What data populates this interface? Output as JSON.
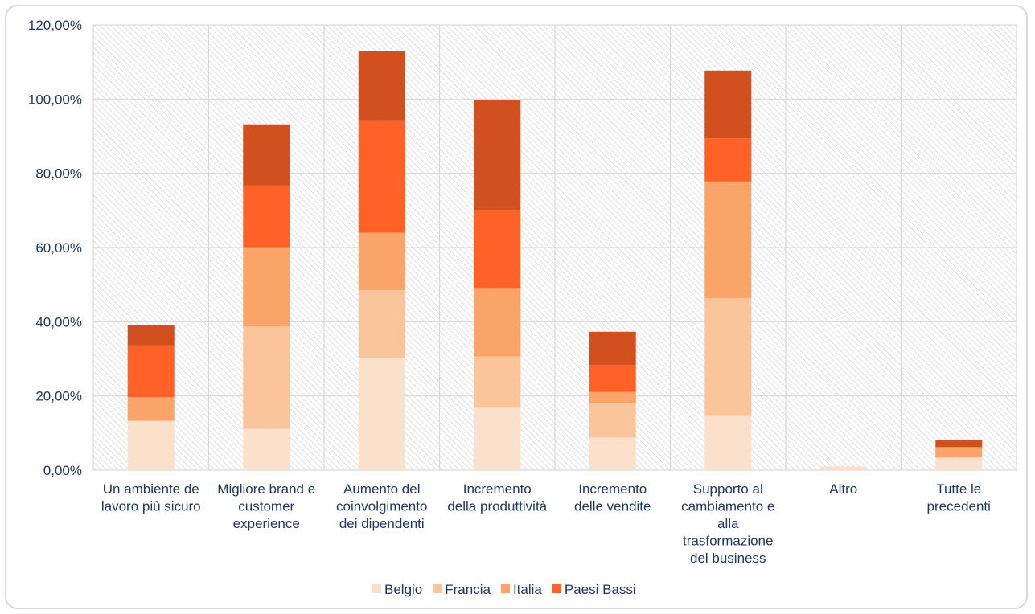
{
  "chart_data": {
    "type": "bar",
    "stacked": true,
    "categories": [
      [
        "Un ambiente de",
        "lavoro più sicuro"
      ],
      [
        "Migliore brand e",
        "customer",
        "experience"
      ],
      [
        "Aumento del",
        "coinvolgimento",
        "dei dipendenti"
      ],
      [
        "Incremento",
        "della produttività"
      ],
      [
        "Incremento",
        "delle vendite"
      ],
      [
        "Supporto al",
        "cambiamento e",
        "alla",
        "trasformazione",
        "del business"
      ],
      [
        "Altro"
      ],
      [
        "Tutte le",
        "precedenti"
      ]
    ],
    "series": [
      {
        "name": "Belgio",
        "color": "#fbe0cc",
        "values": [
          13.3,
          11.1,
          30.3,
          16.8,
          8.8,
          14.6,
          1.0,
          3.4
        ]
      },
      {
        "name": "Francia",
        "color": "#fbc59c",
        "values": [
          0.0,
          27.6,
          18.2,
          13.8,
          9.2,
          31.7,
          0.0,
          0.0
        ]
      },
      {
        "name": "Italia",
        "color": "#fba46a",
        "values": [
          6.4,
          21.4,
          15.5,
          18.5,
          3.1,
          31.5,
          0.0,
          2.8
        ]
      },
      {
        "name": "Paesi Bassi",
        "color": "#ff6127",
        "values": [
          13.9,
          16.6,
          30.3,
          21.0,
          7.2,
          11.6,
          0.0,
          0.0
        ]
      },
      {
        "name": "",
        "color": "#d24f1e",
        "values": [
          5.6,
          16.5,
          18.6,
          29.6,
          9.0,
          18.3,
          0.0,
          1.9
        ]
      }
    ],
    "ylim": [
      0,
      120
    ],
    "yticks": [
      "0,00%",
      "20,00%",
      "40,00%",
      "60,00%",
      "80,00%",
      "100,00%",
      "120,00%"
    ],
    "grid": true,
    "legend_position": "bottom"
  }
}
